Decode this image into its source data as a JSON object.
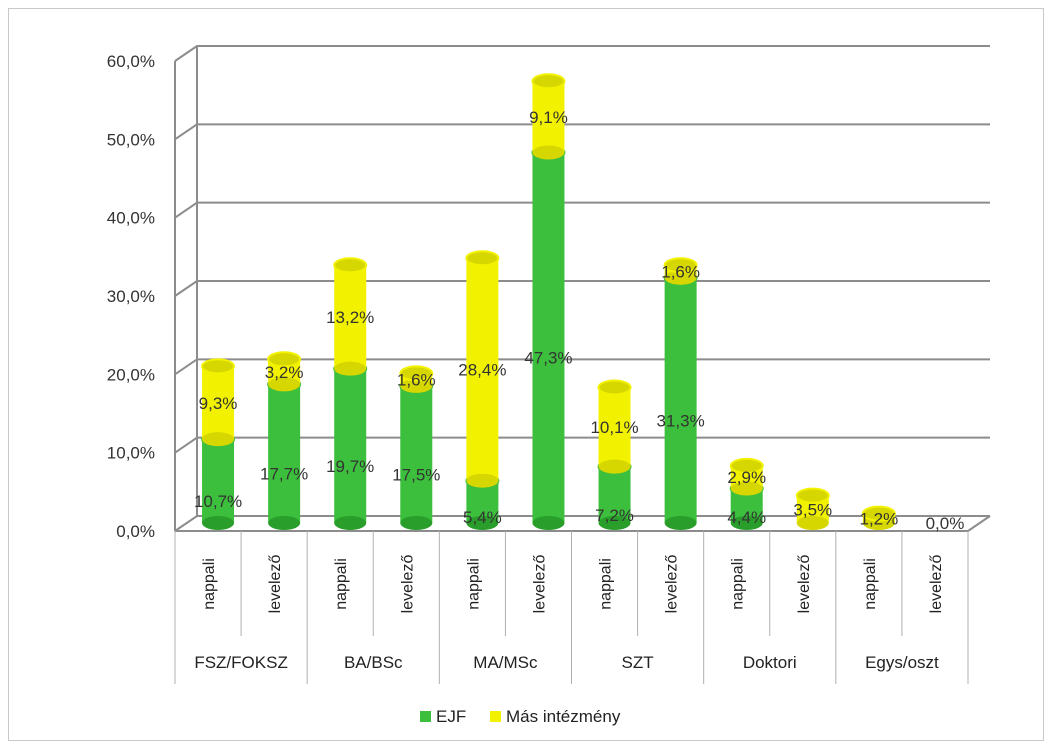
{
  "chart_data": {
    "type": "bar",
    "stacked": true,
    "three_d": true,
    "ylim": [
      0,
      60
    ],
    "y_ticks": [
      "0,0%",
      "10,0%",
      "20,0%",
      "30,0%",
      "40,0%",
      "50,0%",
      "60,0%"
    ],
    "grid": true,
    "legend_position": "bottom",
    "categories": [
      "nappali",
      "levelező",
      "nappali",
      "levelező",
      "nappali",
      "levelező",
      "nappali",
      "levelező",
      "nappali",
      "levelező",
      "nappali",
      "levelező"
    ],
    "groups": [
      "FSZ/FOKSZ",
      "BA/BSc",
      "MA/MSc",
      "SZT",
      "Doktori",
      "Egys/oszt"
    ],
    "series": [
      {
        "name": "EJF",
        "color": "#3cbf3c",
        "values": [
          10.7,
          17.7,
          19.7,
          17.5,
          5.4,
          47.3,
          7.2,
          31.3,
          4.4,
          0.0,
          0.0,
          0.0
        ],
        "labels": [
          "10,7%",
          "17,7%",
          "19,7%",
          "17,5%",
          "5,4%",
          "47,3%",
          "7,2%",
          "31,3%",
          "4,4%",
          "",
          "",
          ""
        ]
      },
      {
        "name": "Más intézmény",
        "color": "#f2f200",
        "values": [
          9.3,
          3.2,
          13.2,
          1.6,
          28.4,
          9.1,
          10.1,
          1.6,
          2.9,
          3.5,
          1.2,
          0.0
        ],
        "labels": [
          "9,3%",
          "3,2%",
          "13,2%",
          "1,6%",
          "28,4%",
          "9,1%",
          "10,1%",
          "1,6%",
          "2,9%",
          "3,5%",
          "1,2%",
          "0,0%"
        ]
      }
    ]
  }
}
